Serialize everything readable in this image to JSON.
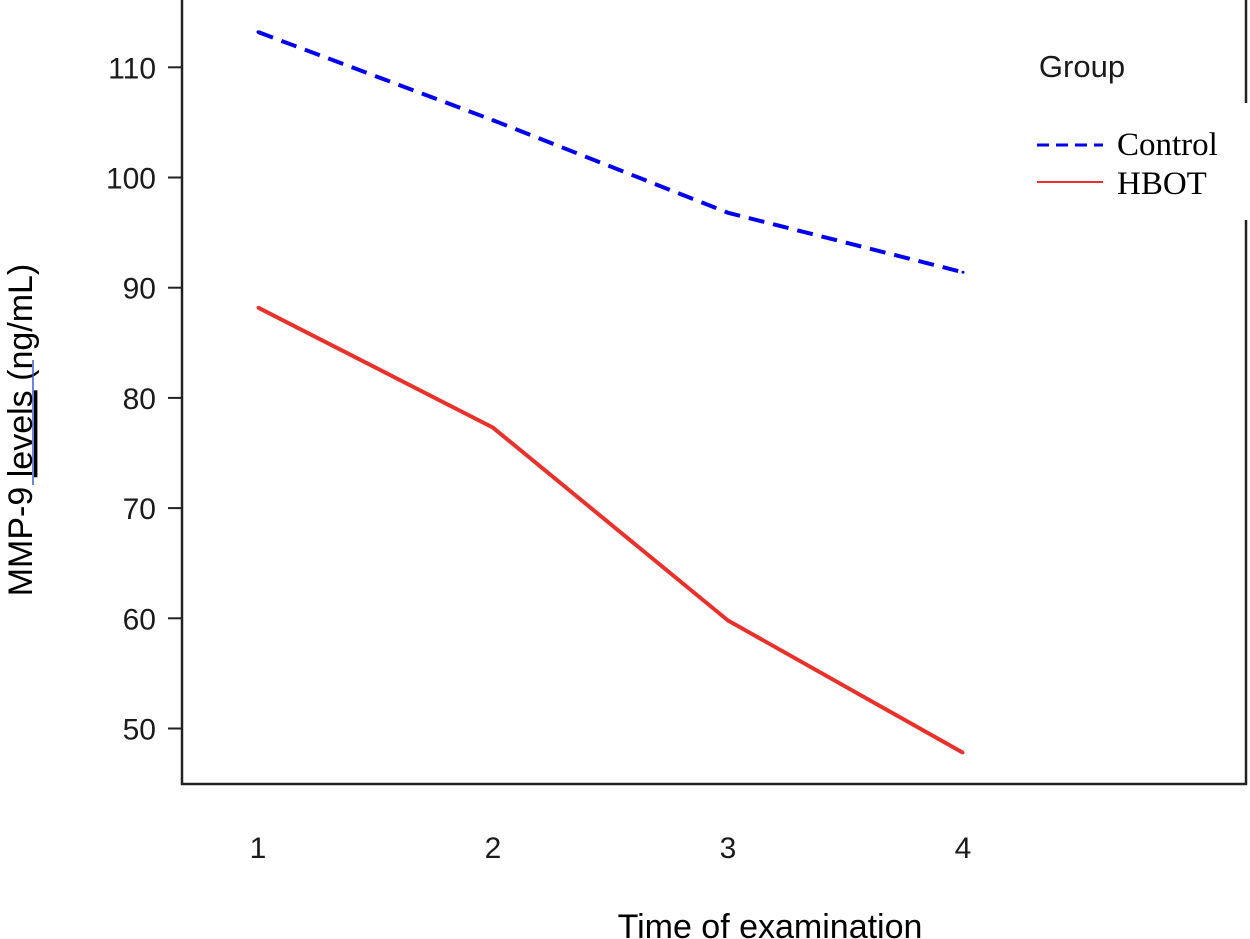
{
  "chart_data": {
    "type": "line",
    "xlabel": "Time of examination",
    "ylabel_prefix": "MMP-9 ",
    "ylabel_underlined": "levels",
    "ylabel_suffix": "  (ng/mL)",
    "x": [
      1,
      2,
      3,
      4
    ],
    "xticks": [
      "1",
      "2",
      "3",
      "4"
    ],
    "yticks": [
      "50",
      "60",
      "70",
      "80",
      "90",
      "100",
      "110"
    ],
    "ylim": [
      45,
      116
    ],
    "grid": false,
    "legend": {
      "title": "Group",
      "position": "top-right"
    },
    "series": [
      {
        "name": "Control",
        "values": [
          113.2,
          105.2,
          96.8,
          91.4
        ],
        "color": "#0000ee",
        "dash": "dashed"
      },
      {
        "name": "HBOT",
        "values": [
          88.2,
          77.3,
          59.8,
          47.8
        ],
        "color": "#e8312a",
        "dash": "solid"
      }
    ]
  }
}
